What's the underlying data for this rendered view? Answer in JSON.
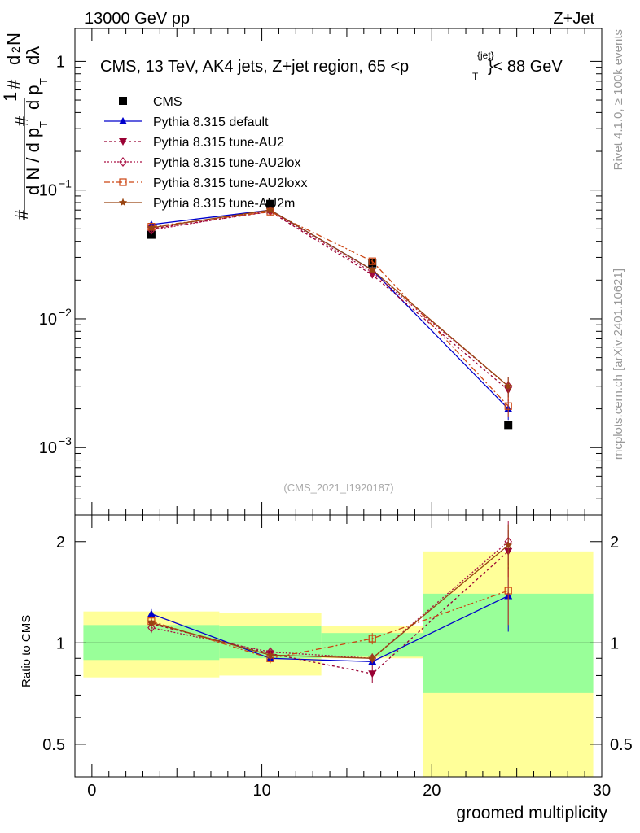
{
  "header": {
    "left": "13000 GeV pp",
    "right": "Z+Jet",
    "side_rivet": "Rivet 4.1.0, ≥ 100k events",
    "side_mcplots": "mcplots.cern.ch [arXiv:2401.10621]",
    "analysis_id": "(CMS_2021_I1920187)"
  },
  "chart_data": [
    {
      "type": "scatter",
      "panel": "main",
      "title": "CMS, 13 TeV, AK4 jets, Z+jet region, 65 <p",
      "title_sup": "{jet}",
      "title_sub": "T",
      "title_end": "}< 88 GeV",
      "ylabel": "1 / (dN/dpT)  dN/(dpT dλ)",
      "yscale": "log",
      "ylim": [
        0.0003,
        1.8
      ],
      "xlim": [
        -1,
        30
      ],
      "y_ticks": [
        {
          "value": 1,
          "mant": "1",
          "exp": ""
        },
        {
          "value": 0.1,
          "mant": "10",
          "exp": "−1"
        },
        {
          "value": 0.01,
          "mant": "10",
          "exp": "−2"
        },
        {
          "value": 0.001,
          "mant": "10",
          "exp": "−3"
        }
      ],
      "x": [
        3.5,
        10.5,
        16.5,
        24.5
      ],
      "series": [
        {
          "name": "CMS",
          "color": "#000000",
          "marker": "square",
          "dash": "",
          "values": [
            0.045,
            0.078,
            0.027,
            0.0015
          ]
        },
        {
          "name": "Pythia 8.315 default",
          "color": "#0000cc",
          "marker": "triangle-up",
          "dash": "",
          "values": [
            0.054,
            0.07,
            0.024,
            0.002
          ]
        },
        {
          "name": "Pythia 8.315 tune-AU2",
          "color": "#990033",
          "marker": "triangle-down",
          "dash": "3,3",
          "values": [
            0.05,
            0.068,
            0.022,
            0.0028
          ]
        },
        {
          "name": "Pythia 8.315 tune-AU2lox",
          "color": "#aa1144",
          "marker": "diamond-open",
          "dash": "2,2",
          "values": [
            0.049,
            0.069,
            0.023,
            0.003
          ]
        },
        {
          "name": "Pythia 8.315 tune-AU2loxx",
          "color": "#cc4411",
          "marker": "square-open",
          "dash": "7,3,2,3",
          "values": [
            0.052,
            0.068,
            0.028,
            0.0021
          ]
        },
        {
          "name": "Pythia 8.315 tune-AU2m",
          "color": "#994411",
          "marker": "star",
          "dash": "",
          "values": [
            0.051,
            0.07,
            0.024,
            0.003
          ]
        }
      ]
    },
    {
      "type": "scatter",
      "panel": "ratio",
      "ylabel": "Ratio to CMS",
      "xlabel": "groomed multiplicity",
      "yscale": "log",
      "ylim": [
        0.4,
        2.4
      ],
      "xlim": [
        -1,
        30
      ],
      "y_ticks": [
        {
          "value": 0.5,
          "label": "0.5"
        },
        {
          "value": 1,
          "label": "1"
        },
        {
          "value": 2,
          "label": "2"
        }
      ],
      "x_ticks": [
        {
          "value": 0,
          "label": "0"
        },
        {
          "value": 10,
          "label": "10"
        },
        {
          "value": 20,
          "label": "20"
        },
        {
          "value": 30,
          "label": "30"
        }
      ],
      "bands": [
        {
          "x0": -0.5,
          "x1": 7.5,
          "inner": [
            0.89,
            1.13
          ],
          "outer": [
            0.79,
            1.24
          ]
        },
        {
          "x0": 7.5,
          "x1": 13.5,
          "inner": [
            0.9,
            1.12
          ],
          "outer": [
            0.8,
            1.23
          ]
        },
        {
          "x0": 13.5,
          "x1": 19.5,
          "inner": [
            0.91,
            1.07
          ],
          "outer": [
            0.9,
            1.12
          ]
        },
        {
          "x0": 19.5,
          "x1": 29.5,
          "inner": [
            0.71,
            1.4
          ],
          "outer": [
            0.37,
            1.87
          ]
        }
      ],
      "x": [
        3.5,
        10.5,
        16.5,
        24.5
      ],
      "series": [
        {
          "name": "Pythia 8.315 default",
          "values": [
            1.22,
            0.9,
            0.88,
            1.38
          ],
          "err": [
            0.04,
            0.02,
            0.02,
            0.3
          ]
        },
        {
          "name": "Pythia 8.315 tune-AU2",
          "values": [
            1.14,
            0.93,
            0.81,
            1.87
          ],
          "err": [
            0.04,
            0.03,
            0.05,
            0.3
          ]
        },
        {
          "name": "Pythia 8.315 tune-AU2lox",
          "values": [
            1.11,
            0.94,
            0.9,
            2.0
          ],
          "err": [
            0.04,
            0.03,
            0.03,
            0.3
          ]
        },
        {
          "name": "Pythia 8.315 tune-AU2loxx",
          "values": [
            1.16,
            0.9,
            1.03,
            1.43
          ],
          "err": [
            0.04,
            0.03,
            0.04,
            0.3
          ]
        },
        {
          "name": "Pythia 8.315 tune-AU2m",
          "values": [
            1.15,
            0.92,
            0.9,
            1.95
          ],
          "err": [
            0.04,
            0.03,
            0.03,
            0.3
          ]
        }
      ]
    }
  ]
}
